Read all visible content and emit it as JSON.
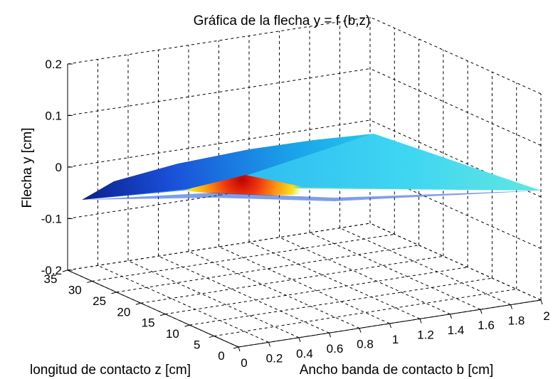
{
  "chart_data": {
    "type": "surface",
    "title": "Gráfica de la flecha y = f (b,z)",
    "xlabel": "Ancho banda de contacto b [cm]",
    "ylabel": "longitud de contacto z [cm]",
    "zlabel": "Flecha y [cm]",
    "xlim": [
      0,
      2
    ],
    "ylim": [
      0,
      35
    ],
    "zlim": [
      -0.2,
      0.2
    ],
    "x_ticks": [
      "0",
      "0.2",
      "0.4",
      "0.6",
      "0.8",
      "1",
      "1.2",
      "1.4",
      "1.6",
      "1.8",
      "2"
    ],
    "y_ticks": [
      "0",
      "5",
      "10",
      "15",
      "20",
      "25",
      "30",
      "35"
    ],
    "z_ticks": [
      "-0.2",
      "-0.1",
      "0",
      "0.1",
      "0.2"
    ],
    "grid": true,
    "colormap": "jet",
    "surface_corners": [
      {
        "b": 0,
        "z": 0,
        "y": -0.02
      },
      {
        "b": 0,
        "z": 33,
        "y": -0.05
      },
      {
        "b": 2,
        "z": 33,
        "y": 0.07
      },
      {
        "b": 2,
        "z": 0,
        "y": -0.04
      },
      {
        "b": 0.6,
        "z": 15,
        "y": -0.01
      }
    ]
  }
}
